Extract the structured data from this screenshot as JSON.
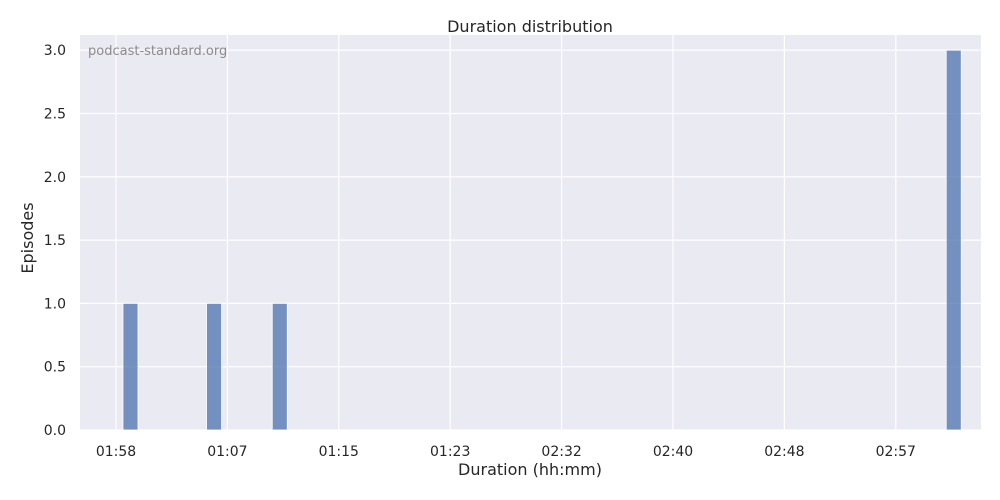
{
  "watermark": "podcast-standard.org",
  "chart_data": {
    "type": "bar",
    "title": "Duration distribution",
    "xlabel": "Duration (hh:mm)",
    "ylabel": "Episodes",
    "x_tick_labels": [
      "01:58",
      "01:07",
      "01:15",
      "01:23",
      "02:32",
      "02:40",
      "02:48",
      "02:57"
    ],
    "y_ticks": [
      "0.0",
      "0.5",
      "1.0",
      "1.5",
      "2.0",
      "2.5",
      "3.0"
    ],
    "ylim": [
      0,
      3.12
    ],
    "bars": [
      {
        "x_tick_index": 0.13,
        "value": 1
      },
      {
        "x_tick_index": 0.88,
        "value": 1
      },
      {
        "x_tick_index": 1.47,
        "value": 1
      },
      {
        "x_tick_index": 7.52,
        "value": 3
      }
    ],
    "bar_color": "#4c72b0",
    "grid": true,
    "background": "#eaeaf2"
  }
}
